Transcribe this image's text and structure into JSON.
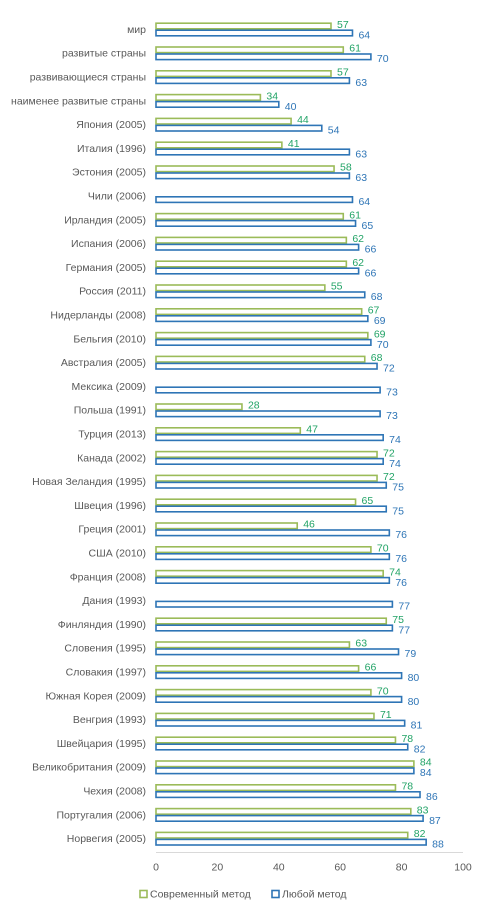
{
  "chart_data": {
    "type": "bar",
    "orientation": "horizontal",
    "categories": [
      "мир",
      "развитые страны",
      "развивающиеся страны",
      "наименее развитые страны",
      "Япония (2005)",
      "Италия (1996)",
      "Эстония (2005)",
      "Чили (2006)",
      "Ирландия (2005)",
      "Испания (2006)",
      "Германия (2005)",
      "Россия (2011)",
      "Нидерланды (2008)",
      "Бельгия (2010)",
      "Австралия (2005)",
      "Мексика (2009)",
      "Польша (1991)",
      "Турция (2013)",
      "Канада (2002)",
      "Новая Зеландия (1995)",
      "Швеция (1996)",
      "Греция (2001)",
      "США (2010)",
      "Франция (2008)",
      "Дания (1993)",
      "Финляндия (1990)",
      "Словения (1995)",
      "Словакия (1997)",
      "Южная Корея (2009)",
      "Венгрия (1993)",
      "Швейцария (1995)",
      "Великобритания (2009)",
      "Чехия (2008)",
      "Португалия (2006)",
      "Норвегия (2005)"
    ],
    "series": [
      {
        "name": "Современный метод",
        "color": "#9bbb59",
        "label_color": "#21a366",
        "values": [
          57,
          61,
          57,
          34,
          44,
          41,
          58,
          null,
          61,
          62,
          62,
          55,
          67,
          69,
          68,
          null,
          28,
          47,
          72,
          72,
          65,
          46,
          70,
          74,
          null,
          75,
          63,
          66,
          70,
          71,
          78,
          84,
          78,
          83,
          82
        ]
      },
      {
        "name": "Любой метод",
        "color": "#2e75b6",
        "label_color": "#2e75b6",
        "values": [
          64,
          70,
          63,
          40,
          54,
          63,
          63,
          64,
          65,
          66,
          66,
          68,
          69,
          70,
          72,
          73,
          73,
          74,
          74,
          75,
          75,
          76,
          76,
          76,
          77,
          77,
          79,
          80,
          80,
          81,
          82,
          84,
          86,
          87,
          88
        ]
      }
    ],
    "xlim": [
      0,
      100
    ],
    "xticks": [
      "0",
      "20",
      "40",
      "60",
      "80",
      "100"
    ],
    "legend": "bottom",
    "grid": false
  }
}
